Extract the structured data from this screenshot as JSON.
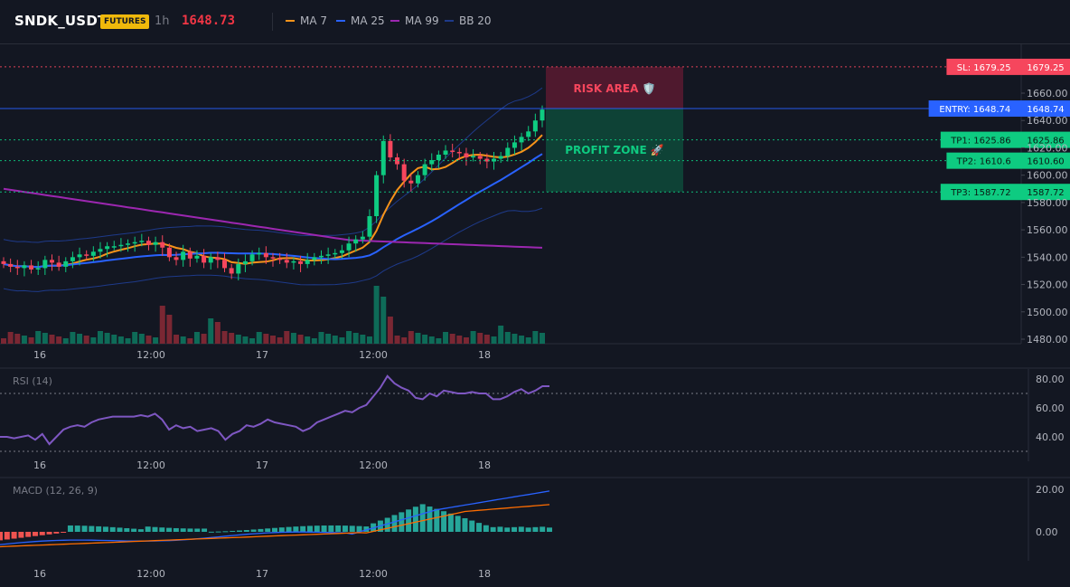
{
  "header": {
    "symbol": "SNDK_USDT",
    "badge": "FUTURES",
    "interval": "1h",
    "last_price": "1648.73"
  },
  "legend": [
    {
      "label": "MA 7",
      "color": "#f7931a"
    },
    {
      "label": "MA 25",
      "color": "#2962ff"
    },
    {
      "label": "MA 99",
      "color": "#9c27b0"
    },
    {
      "label": "BB 20",
      "color": "#1e3a8a"
    }
  ],
  "colors": {
    "up": "#0ecb81",
    "down": "#f6465d",
    "up_vol": "#0e6b58",
    "down_vol": "#7a2733",
    "sl": "#f6465d",
    "entry": "#2962ff",
    "tp": "#0ecb81",
    "grid": "#1e222d",
    "axis_text": "#b2b5be"
  },
  "price_axis": {
    "ticks": [
      "1660.00",
      "1640.00",
      "1620.00",
      "1600.00",
      "1580.00",
      "1560.00",
      "1540.00",
      "1520.00",
      "1500.00",
      "1480.00"
    ]
  },
  "time_axis": {
    "ticks": [
      "16",
      "12:00",
      "17",
      "12:00",
      "18"
    ]
  },
  "levels": [
    {
      "label": "SL: 1679.25",
      "value": "1679.25",
      "kind": "sl"
    },
    {
      "label": "ENTRY: 1648.74",
      "value": "1648.74",
      "kind": "entry"
    },
    {
      "label": "TP1: 1625.86",
      "value": "1625.86",
      "kind": "tp"
    },
    {
      "label": "TP2: 1610.6",
      "value": "1610.60",
      "kind": "tp"
    },
    {
      "label": "TP3: 1587.72",
      "value": "1587.72",
      "kind": "tp"
    }
  ],
  "zones": {
    "risk": "RISK AREA 🛡️",
    "profit": "PROFIT ZONE 🚀"
  },
  "rsi": {
    "title": "RSI (14)",
    "ticks": [
      "80.00",
      "60.00",
      "40.00"
    ],
    "values": [
      40,
      40,
      39,
      40,
      41,
      38,
      42,
      35,
      40,
      45,
      47,
      48,
      47,
      50,
      52,
      53,
      54,
      54,
      54,
      54,
      55,
      54,
      56,
      52,
      45,
      48,
      46,
      47,
      44,
      45,
      46,
      44,
      38,
      42,
      44,
      48,
      47,
      49,
      52,
      50,
      49,
      48,
      47,
      44,
      46,
      50,
      52,
      54,
      56,
      58,
      57,
      60,
      62,
      68,
      74,
      82,
      77,
      74,
      72,
      67,
      66,
      70,
      68,
      72,
      71,
      70,
      70,
      71,
      70,
      70,
      66,
      66,
      68,
      71,
      73,
      70,
      72,
      75,
      75
    ]
  },
  "macd": {
    "title": "MACD (12, 26, 9)",
    "ticks": [
      "20.00",
      "0.00"
    ]
  }
}
